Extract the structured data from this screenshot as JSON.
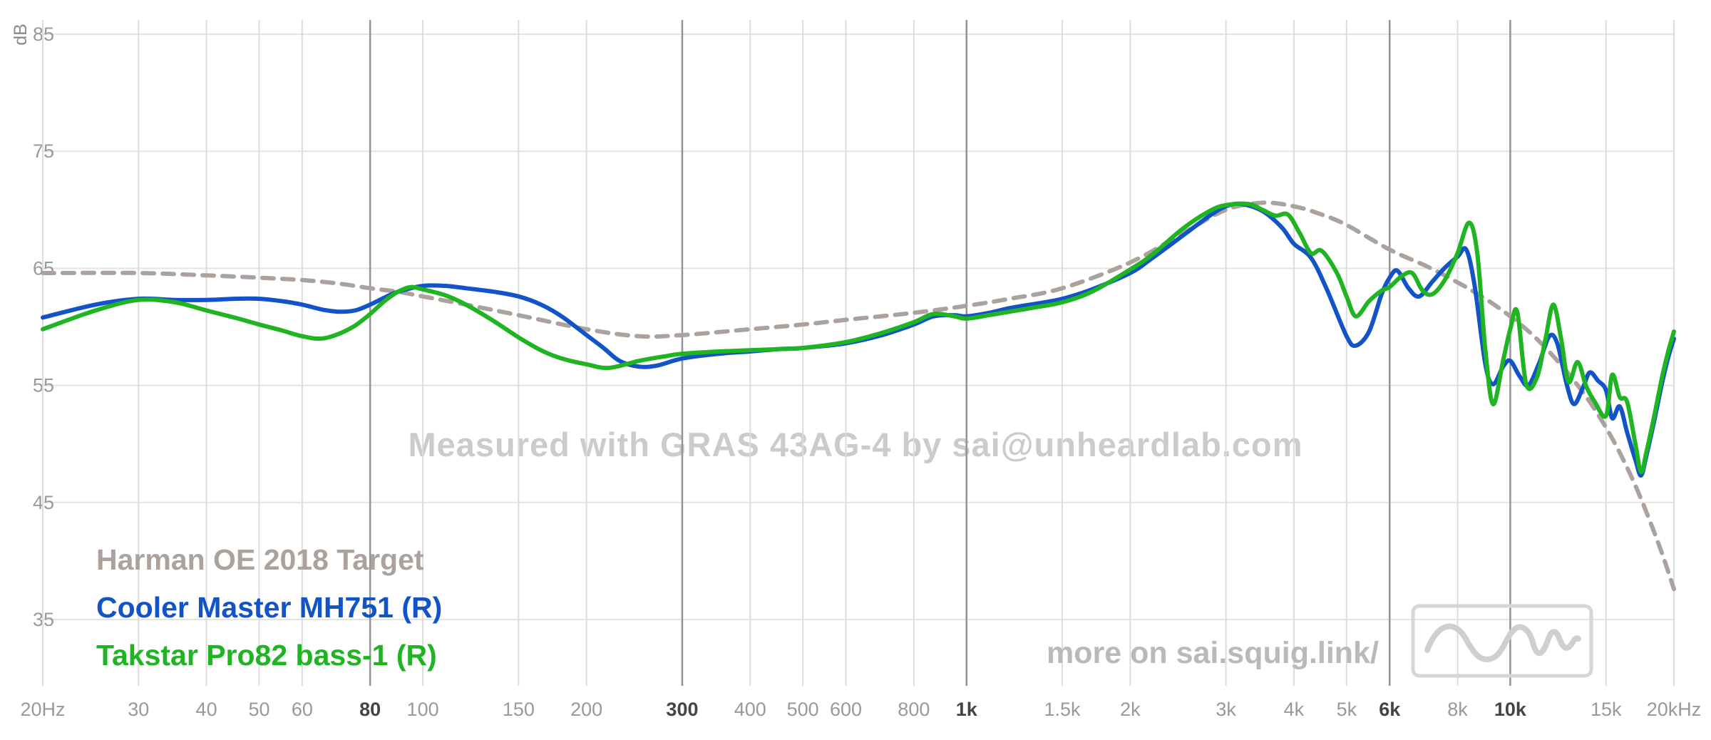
{
  "watermark": "Measured with GRAS 43AG-4 by sai@unheardlab.com",
  "footer_link": "more on sai.squig.link/",
  "colors": {
    "watermark": "#cbcbcb",
    "footer": "#b9b9b9",
    "grid_major": "#949494",
    "grid_minor": "#dcdcdc",
    "grid_horizontal": "#e3e3e3",
    "tick_major": "#444444",
    "tick_minor": "#999999",
    "logo": "#cfcfcf"
  },
  "chart_data": {
    "type": "line",
    "title": "",
    "xlabel": "",
    "ylabel": "dB",
    "x_scale": "log",
    "x_range": [
      20,
      20000
    ],
    "y_range": [
      35,
      85
    ],
    "grid": true,
    "legend_position": "bottom-left",
    "y_ticks": [
      85,
      75,
      65,
      55,
      45,
      35
    ],
    "x_ticks": [
      {
        "f": 20,
        "label": "20Hz",
        "major": false
      },
      {
        "f": 30,
        "label": "30",
        "major": false
      },
      {
        "f": 40,
        "label": "40",
        "major": false
      },
      {
        "f": 50,
        "label": "50",
        "major": false
      },
      {
        "f": 60,
        "label": "60",
        "major": false
      },
      {
        "f": 80,
        "label": "80",
        "major": true
      },
      {
        "f": 100,
        "label": "100",
        "major": false
      },
      {
        "f": 150,
        "label": "150",
        "major": false
      },
      {
        "f": 200,
        "label": "200",
        "major": false
      },
      {
        "f": 300,
        "label": "300",
        "major": true
      },
      {
        "f": 400,
        "label": "400",
        "major": false
      },
      {
        "f": 500,
        "label": "500",
        "major": false
      },
      {
        "f": 600,
        "label": "600",
        "major": false
      },
      {
        "f": 800,
        "label": "800",
        "major": false
      },
      {
        "f": 1000,
        "label": "1k",
        "major": true
      },
      {
        "f": 1500,
        "label": "1.5k",
        "major": false
      },
      {
        "f": 2000,
        "label": "2k",
        "major": false
      },
      {
        "f": 3000,
        "label": "3k",
        "major": false
      },
      {
        "f": 4000,
        "label": "4k",
        "major": false
      },
      {
        "f": 5000,
        "label": "5k",
        "major": false
      },
      {
        "f": 6000,
        "label": "6k",
        "major": true
      },
      {
        "f": 8000,
        "label": "8k",
        "major": false
      },
      {
        "f": 10000,
        "label": "10k",
        "major": true
      },
      {
        "f": 15000,
        "label": "15k",
        "major": false
      },
      {
        "f": 20000,
        "label": "20kHz",
        "major": false
      }
    ],
    "series": [
      {
        "name": "Harman OE 2018 Target",
        "color": "#aba29d",
        "dashed": true,
        "data": [
          [
            20,
            64.6
          ],
          [
            30,
            64.6
          ],
          [
            40,
            64.4
          ],
          [
            50,
            64.2
          ],
          [
            60,
            64.0
          ],
          [
            70,
            63.7
          ],
          [
            80,
            63.3
          ],
          [
            90,
            63.0
          ],
          [
            100,
            62.6
          ],
          [
            120,
            61.9
          ],
          [
            150,
            61.0
          ],
          [
            200,
            59.8
          ],
          [
            250,
            59.2
          ],
          [
            300,
            59.3
          ],
          [
            400,
            59.8
          ],
          [
            500,
            60.2
          ],
          [
            600,
            60.6
          ],
          [
            800,
            61.2
          ],
          [
            1000,
            61.8
          ],
          [
            1200,
            62.4
          ],
          [
            1500,
            63.3
          ],
          [
            2000,
            65.5
          ],
          [
            2500,
            68.0
          ],
          [
            3000,
            70.0
          ],
          [
            3500,
            70.6
          ],
          [
            4000,
            70.3
          ],
          [
            4500,
            69.6
          ],
          [
            5000,
            68.7
          ],
          [
            6000,
            66.6
          ],
          [
            7000,
            65.2
          ],
          [
            8000,
            63.8
          ],
          [
            9000,
            62.4
          ],
          [
            10000,
            60.9
          ],
          [
            11000,
            59.3
          ],
          [
            12000,
            57.5
          ],
          [
            13000,
            55.6
          ],
          [
            14000,
            53.6
          ],
          [
            15000,
            51.4
          ],
          [
            16000,
            49.0
          ],
          [
            17000,
            46.4
          ],
          [
            18000,
            43.6
          ],
          [
            19000,
            40.7
          ],
          [
            20000,
            37.6
          ]
        ]
      },
      {
        "name": "Cooler Master MH751 (R)",
        "color": "#1254c8",
        "dashed": false,
        "data": [
          [
            20,
            60.8
          ],
          [
            25,
            61.9
          ],
          [
            30,
            62.4
          ],
          [
            35,
            62.3
          ],
          [
            40,
            62.3
          ],
          [
            45,
            62.4
          ],
          [
            50,
            62.4
          ],
          [
            55,
            62.2
          ],
          [
            60,
            61.9
          ],
          [
            65,
            61.5
          ],
          [
            70,
            61.3
          ],
          [
            75,
            61.4
          ],
          [
            80,
            61.9
          ],
          [
            85,
            62.5
          ],
          [
            90,
            63.0
          ],
          [
            100,
            63.5
          ],
          [
            110,
            63.5
          ],
          [
            120,
            63.3
          ],
          [
            135,
            63.0
          ],
          [
            150,
            62.6
          ],
          [
            165,
            61.9
          ],
          [
            180,
            60.9
          ],
          [
            200,
            59.3
          ],
          [
            215,
            58.2
          ],
          [
            230,
            57.1
          ],
          [
            250,
            56.6
          ],
          [
            270,
            56.7
          ],
          [
            300,
            57.3
          ],
          [
            350,
            57.7
          ],
          [
            400,
            57.9
          ],
          [
            450,
            58.1
          ],
          [
            500,
            58.2
          ],
          [
            600,
            58.6
          ],
          [
            700,
            59.3
          ],
          [
            800,
            60.2
          ],
          [
            870,
            60.9
          ],
          [
            950,
            61.0
          ],
          [
            1000,
            60.9
          ],
          [
            1100,
            61.2
          ],
          [
            1200,
            61.6
          ],
          [
            1350,
            62.0
          ],
          [
            1500,
            62.4
          ],
          [
            1700,
            63.2
          ],
          [
            2000,
            64.6
          ],
          [
            2200,
            65.9
          ],
          [
            2500,
            67.8
          ],
          [
            2800,
            69.5
          ],
          [
            3000,
            70.3
          ],
          [
            3200,
            70.5
          ],
          [
            3500,
            69.9
          ],
          [
            3800,
            68.5
          ],
          [
            4000,
            67.1
          ],
          [
            4300,
            65.9
          ],
          [
            4600,
            63.2
          ],
          [
            5000,
            59.2
          ],
          [
            5200,
            58.4
          ],
          [
            5500,
            59.6
          ],
          [
            5800,
            62.8
          ],
          [
            6000,
            64.2
          ],
          [
            6200,
            64.8
          ],
          [
            6500,
            63.3
          ],
          [
            6800,
            62.6
          ],
          [
            7200,
            63.9
          ],
          [
            7600,
            65.1
          ],
          [
            8000,
            66.0
          ],
          [
            8300,
            66.6
          ],
          [
            8600,
            63.5
          ],
          [
            9000,
            56.8
          ],
          [
            9300,
            55.1
          ],
          [
            9700,
            56.6
          ],
          [
            10000,
            57.1
          ],
          [
            10400,
            55.8
          ],
          [
            10800,
            55.0
          ],
          [
            11300,
            56.9
          ],
          [
            11800,
            59.2
          ],
          [
            12200,
            58.6
          ],
          [
            12700,
            55.1
          ],
          [
            13100,
            53.4
          ],
          [
            13600,
            54.8
          ],
          [
            14000,
            56.1
          ],
          [
            14500,
            55.4
          ],
          [
            15000,
            54.6
          ],
          [
            15400,
            52.2
          ],
          [
            15900,
            53.2
          ],
          [
            16400,
            51.0
          ],
          [
            17000,
            48.6
          ],
          [
            17400,
            47.3
          ],
          [
            17800,
            49.0
          ],
          [
            18400,
            52.0
          ],
          [
            19000,
            55.1
          ],
          [
            19500,
            57.3
          ],
          [
            20000,
            59.0
          ]
        ]
      },
      {
        "name": "Takstar Pro82 bass-1 (R)",
        "color": "#1eb422",
        "dashed": false,
        "data": [
          [
            20,
            59.8
          ],
          [
            25,
            61.4
          ],
          [
            30,
            62.3
          ],
          [
            35,
            62.1
          ],
          [
            40,
            61.4
          ],
          [
            45,
            60.8
          ],
          [
            50,
            60.2
          ],
          [
            55,
            59.7
          ],
          [
            60,
            59.2
          ],
          [
            65,
            59.0
          ],
          [
            70,
            59.4
          ],
          [
            75,
            60.1
          ],
          [
            80,
            61.1
          ],
          [
            85,
            62.2
          ],
          [
            90,
            63.0
          ],
          [
            95,
            63.4
          ],
          [
            100,
            63.2
          ],
          [
            110,
            62.7
          ],
          [
            120,
            61.9
          ],
          [
            135,
            60.5
          ],
          [
            150,
            59.1
          ],
          [
            165,
            58.0
          ],
          [
            180,
            57.3
          ],
          [
            200,
            56.8
          ],
          [
            220,
            56.5
          ],
          [
            250,
            57.1
          ],
          [
            280,
            57.5
          ],
          [
            300,
            57.7
          ],
          [
            350,
            57.9
          ],
          [
            400,
            58.0
          ],
          [
            450,
            58.1
          ],
          [
            500,
            58.2
          ],
          [
            600,
            58.7
          ],
          [
            700,
            59.5
          ],
          [
            800,
            60.4
          ],
          [
            870,
            61.1
          ],
          [
            950,
            60.9
          ],
          [
            1000,
            60.7
          ],
          [
            1100,
            61.0
          ],
          [
            1200,
            61.3
          ],
          [
            1350,
            61.7
          ],
          [
            1500,
            62.1
          ],
          [
            1700,
            63.0
          ],
          [
            2000,
            64.9
          ],
          [
            2200,
            66.2
          ],
          [
            2500,
            68.4
          ],
          [
            2800,
            69.9
          ],
          [
            3000,
            70.4
          ],
          [
            3300,
            70.5
          ],
          [
            3500,
            70.0
          ],
          [
            3700,
            69.5
          ],
          [
            3900,
            69.6
          ],
          [
            4100,
            68.0
          ],
          [
            4300,
            66.3
          ],
          [
            4500,
            66.5
          ],
          [
            4800,
            64.6
          ],
          [
            5000,
            62.6
          ],
          [
            5200,
            60.9
          ],
          [
            5500,
            62.2
          ],
          [
            5800,
            63.1
          ],
          [
            6000,
            63.4
          ],
          [
            6300,
            64.3
          ],
          [
            6600,
            64.6
          ],
          [
            6900,
            63.1
          ],
          [
            7200,
            62.8
          ],
          [
            7600,
            64.1
          ],
          [
            8000,
            66.3
          ],
          [
            8400,
            68.9
          ],
          [
            8700,
            66.2
          ],
          [
            9000,
            58.0
          ],
          [
            9300,
            53.4
          ],
          [
            9700,
            57.1
          ],
          [
            10000,
            59.8
          ],
          [
            10300,
            61.3
          ],
          [
            10700,
            55.1
          ],
          [
            11200,
            55.7
          ],
          [
            11600,
            58.9
          ],
          [
            12000,
            61.9
          ],
          [
            12400,
            59.0
          ],
          [
            12800,
            55.3
          ],
          [
            13300,
            57.0
          ],
          [
            13800,
            54.9
          ],
          [
            14300,
            53.6
          ],
          [
            15000,
            52.4
          ],
          [
            15400,
            55.9
          ],
          [
            15900,
            54.0
          ],
          [
            16400,
            53.6
          ],
          [
            17000,
            49.9
          ],
          [
            17400,
            47.6
          ],
          [
            17800,
            49.3
          ],
          [
            18400,
            52.4
          ],
          [
            19000,
            55.6
          ],
          [
            19500,
            57.8
          ],
          [
            20000,
            59.6
          ]
        ]
      }
    ]
  }
}
